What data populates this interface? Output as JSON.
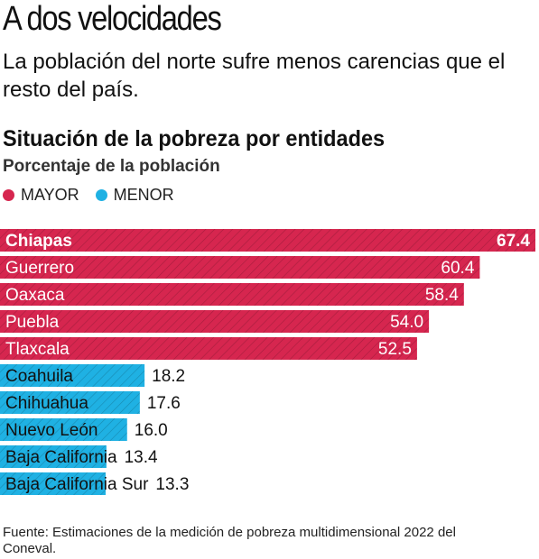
{
  "headline": "A dos velocidades",
  "subhead": "La población del norte sufre menos carencias que el resto del país.",
  "legend": {
    "mayor": {
      "label": "MAYOR",
      "color": "#d6264f"
    },
    "menor": {
      "label": "MENOR",
      "color": "#1fb1e3"
    }
  },
  "source": "Fuente: Estimaciones de la medición de pobreza multidimensional 2022 del Coneval.",
  "chart_data": {
    "type": "bar",
    "orientation": "horizontal",
    "title": "Situación de la pobreza por entidades",
    "subtitle": "Porcentaje de la población",
    "categories": [
      "Chiapas",
      "Guerrero",
      "Oaxaca",
      "Puebla",
      "Tlaxcala",
      "Coahuila",
      "Chihuahua",
      "Nuevo León",
      "Baja California",
      "Baja California Sur"
    ],
    "values": [
      67.4,
      60.4,
      58.4,
      54.0,
      52.5,
      18.2,
      17.6,
      16.0,
      13.4,
      13.3
    ],
    "value_labels": [
      "67.4",
      "60.4",
      "58.4",
      "54.0",
      "52.5",
      "18.2",
      "17.6",
      "16.0",
      "13.4",
      "13.3"
    ],
    "groups": [
      "mayor",
      "mayor",
      "mayor",
      "mayor",
      "mayor",
      "menor",
      "menor",
      "menor",
      "menor",
      "menor"
    ],
    "xlim": [
      0,
      67.4
    ],
    "grid": false,
    "legend_position": "top-left"
  }
}
